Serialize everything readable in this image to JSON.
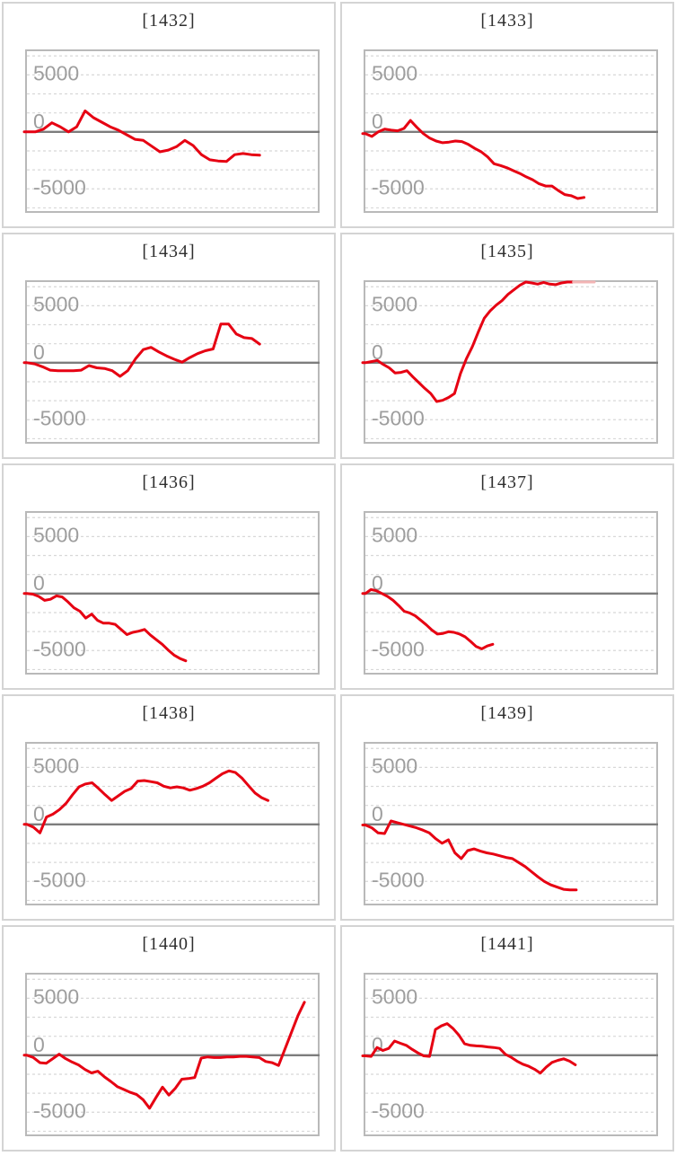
{
  "colors": {
    "page_background": "#ffffff",
    "panel_border": "#d4d4d4",
    "plot_border": "#b9b9b9",
    "gridline": "#d8d8d8",
    "zero_line": "#7d7d7d",
    "tick_label": "#9e9e9e",
    "title_text": "#2f2f2f",
    "series_red": "#e60012",
    "series_clipped_pink": "#f2b4b4"
  },
  "chart_data": {
    "layout": "grid-2x5",
    "axis": {
      "yticks": [
        "5000",
        "0",
        "-5000"
      ],
      "ylim": [
        -6950,
        7080
      ],
      "grid_step": 1667,
      "grid_style": "dashed-horizontal",
      "zero_line": "solid",
      "x_axis_labels": "none",
      "legend": "none"
    },
    "charts": [
      {
        "type": "line",
        "title": "[1432]",
        "series": [
          {
            "name": "balance",
            "color": "#e60012",
            "end_frac": 0.8,
            "values": [
              0,
              0,
              250,
              800,
              450,
              0,
              450,
              1850,
              1250,
              850,
              450,
              150,
              -250,
              -650,
              -750,
              -1250,
              -1750,
              -1600,
              -1300,
              -750,
              -1200,
              -2000,
              -2450,
              -2550,
              -2600,
              -2000,
              -1900,
              -2000,
              -2050
            ]
          }
        ]
      },
      {
        "type": "line",
        "title": "[1433]",
        "series": [
          {
            "name": "balance",
            "color": "#e60012",
            "end_frac": 0.752,
            "values": [
              -150,
              -400,
              0,
              250,
              150,
              100,
              300,
              1000,
              400,
              -150,
              -550,
              -800,
              -950,
              -900,
              -800,
              -850,
              -1100,
              -1450,
              -1750,
              -2200,
              -2800,
              -2950,
              -3150,
              -3400,
              -3650,
              -3950,
              -4200,
              -4550,
              -4750,
              -4750,
              -5150,
              -5500,
              -5600,
              -5850,
              -5750
            ]
          }
        ]
      },
      {
        "type": "line",
        "title": "[1434]",
        "series": [
          {
            "name": "balance",
            "color": "#e60012",
            "end_frac": 0.8,
            "values": [
              0,
              -100,
              -350,
              -650,
              -700,
              -700,
              -700,
              -650,
              -250,
              -450,
              -500,
              -700,
              -1200,
              -700,
              350,
              1150,
              1350,
              950,
              600,
              300,
              50,
              450,
              800,
              1050,
              1210,
              3400,
              3400,
              2520,
              2200,
              2120,
              1630
            ]
          }
        ]
      },
      {
        "type": "line",
        "title": "[1435]",
        "series": [
          {
            "name": "balance",
            "color": "#e60012",
            "end_frac": 0.715,
            "values": [
              0,
              100,
              200,
              -150,
              -450,
              -900,
              -850,
              -700,
              -1250,
              -1750,
              -2250,
              -2700,
              -3400,
              -3300,
              -3050,
              -2700,
              -950,
              350,
              1400,
              2700,
              3900,
              4550,
              5050,
              5450,
              6000,
              6400,
              6800,
              7080,
              7000,
              6900,
              7050,
              6900,
              6850,
              7000,
              7080,
              7080
            ]
          },
          {
            "name": "balance-clipped-tail",
            "color": "#f2b4b4",
            "start_frac": 0.715,
            "end_frac": 0.787,
            "values": [
              7080,
              7080
            ]
          }
        ]
      },
      {
        "type": "line",
        "title": "[1436]",
        "series": [
          {
            "name": "balance",
            "color": "#e60012",
            "end_frac": 0.546,
            "values": [
              0,
              -50,
              -250,
              -600,
              -500,
              -200,
              -300,
              -750,
              -1250,
              -1550,
              -2150,
              -1800,
              -2350,
              -2600,
              -2600,
              -2700,
              -3150,
              -3600,
              -3400,
              -3300,
              -3150,
              -3650,
              -4050,
              -4450,
              -4950,
              -5400,
              -5700,
              -5900
            ]
          }
        ]
      },
      {
        "type": "line",
        "title": "[1437]",
        "series": [
          {
            "name": "balance",
            "color": "#e60012",
            "end_frac": 0.438,
            "values": [
              0,
              350,
              250,
              0,
              -250,
              -600,
              -1050,
              -1550,
              -1700,
              -1950,
              -2350,
              -2750,
              -3200,
              -3550,
              -3500,
              -3350,
              -3400,
              -3550,
              -3800,
              -4200,
              -4650,
              -4850,
              -4600,
              -4450
            ]
          }
        ]
      },
      {
        "type": "line",
        "title": "[1438]",
        "series": [
          {
            "name": "balance",
            "color": "#e60012",
            "end_frac": 0.829,
            "values": [
              0,
              -250,
              -750,
              650,
              900,
              1300,
              1850,
              2600,
              3300,
              3550,
              3650,
              3150,
              2600,
              2100,
              2500,
              2900,
              3150,
              3800,
              3850,
              3750,
              3650,
              3350,
              3200,
              3300,
              3200,
              3000,
              3150,
              3350,
              3650,
              4050,
              4450,
              4700,
              4550,
              4050,
              3400,
              2750,
              2350,
              2100
            ]
          }
        ]
      },
      {
        "type": "line",
        "title": "[1439]",
        "series": [
          {
            "name": "balance",
            "color": "#e60012",
            "end_frac": 0.725,
            "values": [
              -50,
              -300,
              -750,
              -800,
              300,
              150,
              0,
              -150,
              -300,
              -500,
              -750,
              -1250,
              -1650,
              -1350,
              -2500,
              -3000,
              -2300,
              -2150,
              -2350,
              -2500,
              -2600,
              -2750,
              -2900,
              -3000,
              -3350,
              -3700,
              -4150,
              -4600,
              -5000,
              -5300,
              -5500,
              -5700,
              -5750,
              -5750
            ]
          }
        ]
      },
      {
        "type": "line",
        "title": "[1440]",
        "series": [
          {
            "name": "balance",
            "color": "#e60012",
            "end_frac": 0.954,
            "values": [
              0,
              -200,
              -650,
              -700,
              -300,
              100,
              -300,
              -600,
              -850,
              -1250,
              -1550,
              -1400,
              -1900,
              -2300,
              -2750,
              -3000,
              -3250,
              -3450,
              -3900,
              -4650,
              -3700,
              -2800,
              -3500,
              -2900,
              -2100,
              -2050,
              -1950,
              -250,
              -150,
              -200,
              -200,
              -150,
              -150,
              -100,
              -100,
              -150,
              -200,
              -550,
              -650,
              -900,
              560,
              2020,
              3480,
              4650
            ]
          }
        ]
      },
      {
        "type": "line",
        "title": "[1441]",
        "series": [
          {
            "name": "balance",
            "color": "#e60012",
            "end_frac": 0.722,
            "values": [
              -50,
              -100,
              680,
              420,
              600,
              1250,
              1050,
              870,
              520,
              210,
              -50,
              -100,
              2260,
              2570,
              2780,
              2360,
              1780,
              1000,
              870,
              820,
              790,
              730,
              680,
              600,
              80,
              -180,
              -520,
              -790,
              -970,
              -1230,
              -1570,
              -1050,
              -630,
              -450,
              -310,
              -520,
              -840
            ]
          }
        ]
      }
    ]
  }
}
